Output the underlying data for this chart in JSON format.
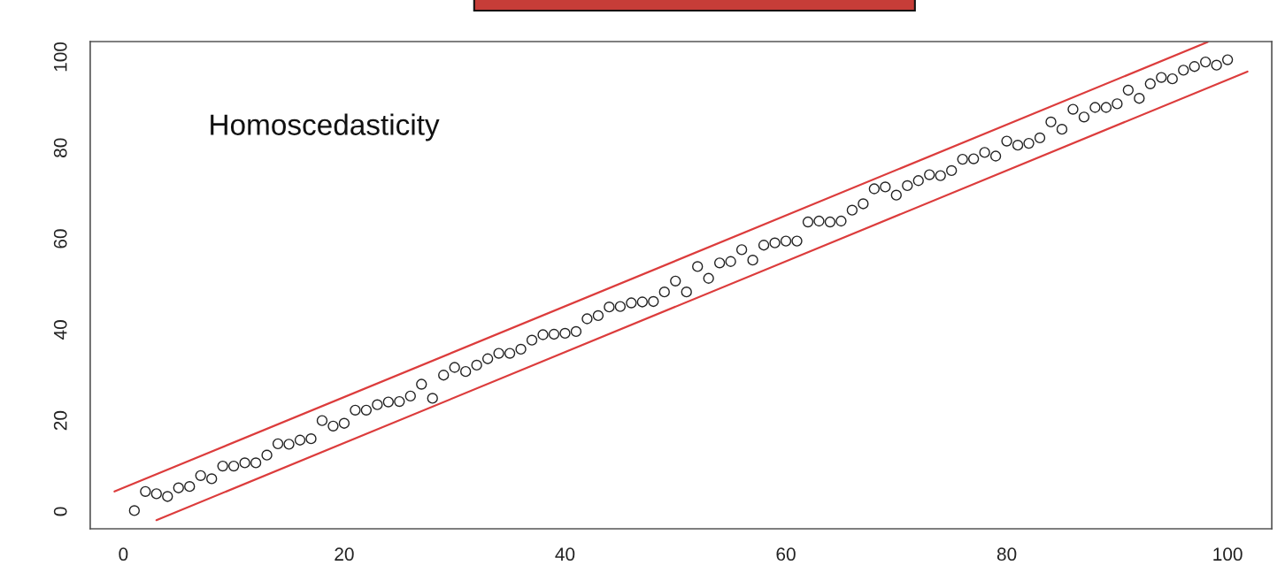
{
  "chart_data": {
    "type": "scatter",
    "annotations": [
      "Homoscedasticity"
    ],
    "xlim": [
      -3,
      104
    ],
    "ylim": [
      -3.8,
      103.4
    ],
    "xticks": [
      0,
      20,
      40,
      60,
      80,
      100
    ],
    "yticks": [
      0,
      20,
      40,
      60,
      80,
      100
    ],
    "marker": "circle",
    "series": [
      {
        "color": "#222222",
        "x": [
          1,
          2,
          3,
          4,
          5,
          6,
          7,
          8,
          9,
          10,
          11,
          12,
          13,
          14,
          15,
          16,
          17,
          18,
          19,
          20,
          21,
          22,
          23,
          24,
          25,
          26,
          27,
          28,
          29,
          30,
          31,
          32,
          33,
          34,
          35,
          36,
          37,
          38,
          39,
          40,
          41,
          42,
          43,
          44,
          45,
          46,
          47,
          48,
          49,
          50,
          51,
          52,
          53,
          54,
          55,
          56,
          57,
          58,
          59,
          60,
          61,
          62,
          63,
          64,
          65,
          66,
          67,
          68,
          69,
          70,
          71,
          72,
          73,
          74,
          75,
          76,
          77,
          78,
          79,
          80,
          81,
          82,
          83,
          84,
          85,
          86,
          87,
          88,
          89,
          90,
          91,
          92,
          93,
          94,
          95,
          96,
          97,
          98,
          99,
          100
        ],
        "values": [
          0.2,
          4.4,
          3.9,
          3.3,
          5.2,
          5.5,
          7.9,
          7.2,
          10.0,
          10.0,
          10.7,
          10.7,
          12.4,
          14.9,
          14.8,
          15.7,
          16.0,
          20.0,
          18.8,
          19.4,
          22.3,
          22.3,
          23.5,
          24.1,
          24.2,
          25.4,
          28.0,
          24.9,
          30.0,
          31.7,
          30.8,
          32.2,
          33.6,
          34.8,
          34.8,
          35.7,
          37.7,
          38.9,
          39.0,
          39.2,
          39.6,
          42.4,
          43.1,
          45.0,
          45.1,
          45.9,
          46.1,
          46.2,
          48.3,
          50.7,
          48.3,
          53.9,
          51.3,
          54.7,
          55.0,
          57.6,
          55.3,
          58.6,
          59.1,
          59.5,
          59.5,
          63.7,
          63.9,
          63.7,
          63.9,
          66.3,
          67.7,
          71.0,
          71.4,
          69.6,
          71.7,
          72.8,
          74.1,
          73.9,
          75.0,
          77.5,
          77.6,
          79.0,
          78.2,
          81.5,
          80.6,
          81.0,
          82.2,
          85.7,
          84.1,
          88.5,
          86.8,
          88.9,
          88.9,
          89.7,
          92.7,
          90.9,
          94.1,
          95.5,
          95.2,
          97.1,
          97.9,
          98.9,
          98.2,
          99.4
        ]
      },
      {
        "type": "line",
        "color": "#dc3c3c",
        "marker": "none",
        "line_style": "solid",
        "x": [
          -0.8,
          98.2
        ],
        "values": [
          4.4,
          103.3
        ]
      },
      {
        "type": "line",
        "color": "#dc3c3c",
        "marker": "none",
        "line_style": "solid",
        "x": [
          3.0,
          101.8
        ],
        "values": [
          -1.9,
          96.8
        ]
      }
    ]
  }
}
